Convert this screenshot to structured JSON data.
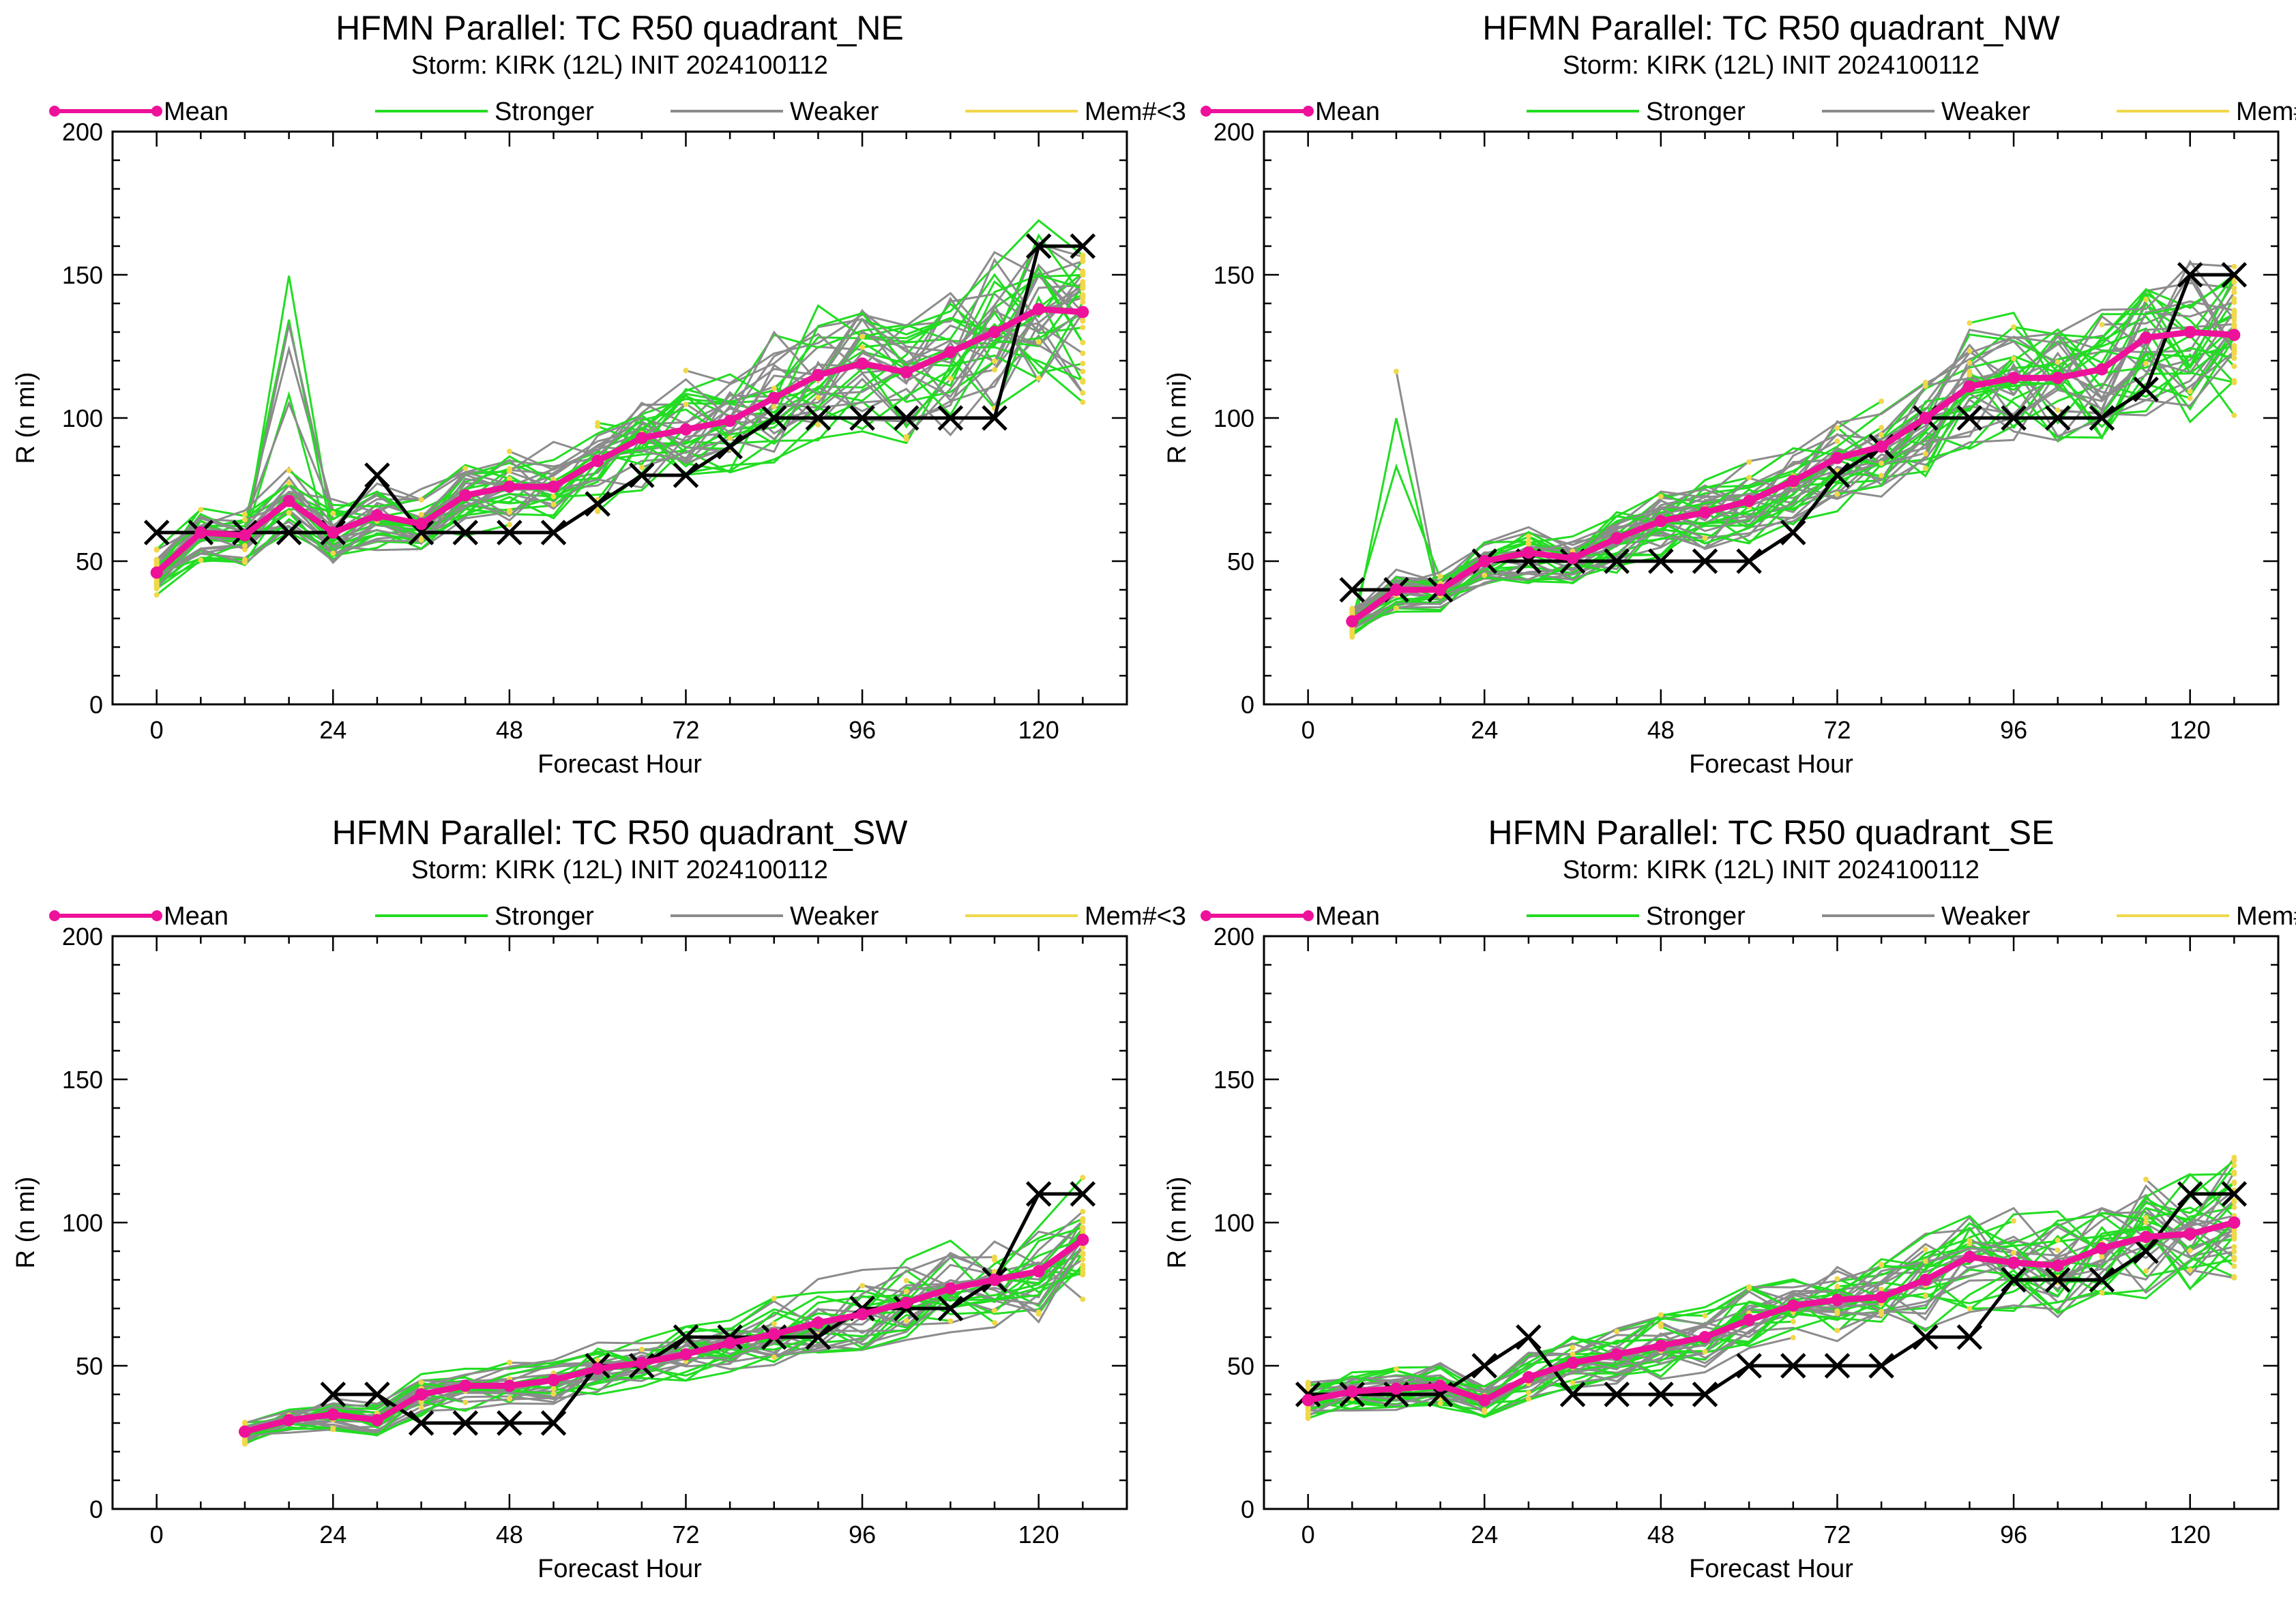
{
  "legend_labels": [
    "Mean",
    "Stronger",
    "Weaker",
    "Mem#<3"
  ],
  "colors": {
    "mean": "#ee1199",
    "stronger": "#22dd22",
    "weaker": "#8c8c8c",
    "few_members": "#f0d84a",
    "best_track": "#000000"
  },
  "chart_data": [
    {
      "type": "line",
      "title": "HFMN Parallel: TC  R50 quadrant_NE",
      "subtitle": "Storm: KIRK (12L) INIT 2024100112",
      "xlabel": "Forecast Hour",
      "ylabel": "R (n mi)",
      "xlim": [
        -6,
        132
      ],
      "ylim": [
        0,
        200
      ],
      "xticks": [
        0,
        24,
        48,
        72,
        96,
        120
      ],
      "yticks": [
        0,
        50,
        100,
        150,
        200
      ],
      "legend": "top",
      "series": [
        {
          "name": "Mean",
          "x": [
            0,
            6,
            12,
            18,
            24,
            30,
            36,
            42,
            48,
            54,
            60,
            66,
            72,
            78,
            84,
            90,
            96,
            102,
            108,
            114,
            120,
            126
          ],
          "values": [
            46,
            60,
            59,
            71,
            60,
            66,
            63,
            73,
            76,
            76,
            85,
            93,
            96,
            99,
            107,
            115,
            119,
            116,
            123,
            130,
            138,
            137
          ]
        },
        {
          "name": "",
          "x": [
            0,
            6,
            12,
            18,
            24,
            30,
            36,
            42,
            48,
            54,
            60,
            66,
            72,
            78,
            84,
            90,
            96,
            102,
            108,
            114,
            120,
            126
          ],
          "values": [
            60,
            60,
            60,
            60,
            60,
            80,
            60,
            60,
            60,
            60,
            70,
            80,
            80,
            90,
            100,
            100,
            100,
            100,
            100,
            100,
            160,
            160
          ]
        }
      ]
    },
    {
      "type": "line",
      "title": "HFMN Parallel: TC  R50 quadrant_NW",
      "subtitle": "Storm: KIRK (12L) INIT 2024100112",
      "xlabel": "Forecast Hour",
      "ylabel": "R (n mi)",
      "xlim": [
        -6,
        132
      ],
      "ylim": [
        0,
        200
      ],
      "xticks": [
        0,
        24,
        48,
        72,
        96,
        120
      ],
      "yticks": [
        0,
        50,
        100,
        150,
        200
      ],
      "legend": "top",
      "series": [
        {
          "name": "Mean",
          "x": [
            6,
            12,
            18,
            24,
            30,
            36,
            42,
            48,
            54,
            60,
            66,
            72,
            78,
            84,
            90,
            96,
            102,
            108,
            114,
            120,
            126
          ],
          "values": [
            29,
            40,
            40,
            50,
            53,
            51,
            58,
            64,
            67,
            71,
            78,
            86,
            90,
            100,
            111,
            114,
            114,
            117,
            128,
            130,
            129
          ]
        },
        {
          "name": "",
          "x": [
            6,
            12,
            18,
            24,
            30,
            36,
            42,
            48,
            54,
            60,
            66,
            72,
            78,
            84,
            90,
            96,
            102,
            108,
            114,
            120,
            126
          ],
          "values": [
            40,
            40,
            40,
            50,
            50,
            50,
            50,
            50,
            50,
            50,
            60,
            80,
            90,
            100,
            100,
            100,
            100,
            100,
            110,
            150,
            150
          ]
        }
      ]
    },
    {
      "type": "line",
      "title": "HFMN Parallel: TC  R50 quadrant_SW",
      "subtitle": "Storm: KIRK (12L) INIT 2024100112",
      "xlabel": "Forecast Hour",
      "ylabel": "R (n mi)",
      "xlim": [
        -6,
        132
      ],
      "ylim": [
        0,
        200
      ],
      "xticks": [
        0,
        24,
        48,
        72,
        96,
        120
      ],
      "yticks": [
        0,
        50,
        100,
        150,
        200
      ],
      "legend": "top",
      "series": [
        {
          "name": "Mean",
          "x": [
            12,
            18,
            24,
            30,
            36,
            42,
            48,
            54,
            60,
            66,
            72,
            78,
            84,
            90,
            96,
            102,
            108,
            114,
            120,
            126
          ],
          "values": [
            27,
            31,
            33,
            31,
            40,
            43,
            43,
            45,
            49,
            51,
            54,
            58,
            61,
            65,
            68,
            72,
            77,
            80,
            83,
            94
          ]
        },
        {
          "name": "",
          "x": [
            24,
            30,
            36,
            42,
            48,
            54,
            60,
            66,
            72,
            78,
            84,
            90,
            96,
            102,
            108,
            114,
            120,
            126
          ],
          "values": [
            40,
            40,
            30,
            30,
            30,
            30,
            50,
            50,
            60,
            60,
            60,
            60,
            70,
            70,
            70,
            80,
            110,
            110
          ]
        }
      ]
    },
    {
      "type": "line",
      "title": "HFMN Parallel: TC  R50 quadrant_SE",
      "subtitle": "Storm: KIRK (12L) INIT 2024100112",
      "xlabel": "Forecast Hour",
      "ylabel": "R (n mi)",
      "xlim": [
        -6,
        132
      ],
      "ylim": [
        0,
        200
      ],
      "xticks": [
        0,
        24,
        48,
        72,
        96,
        120
      ],
      "yticks": [
        0,
        50,
        100,
        150,
        200
      ],
      "legend": "top",
      "series": [
        {
          "name": "Mean",
          "x": [
            0,
            6,
            12,
            18,
            24,
            30,
            36,
            42,
            48,
            54,
            60,
            66,
            72,
            78,
            84,
            90,
            96,
            102,
            108,
            114,
            120,
            126
          ],
          "values": [
            38,
            41,
            42,
            43,
            38,
            46,
            51,
            54,
            57,
            60,
            66,
            71,
            73,
            74,
            80,
            88,
            86,
            85,
            91,
            95,
            96,
            100
          ]
        },
        {
          "name": "",
          "x": [
            0,
            6,
            12,
            18,
            24,
            30,
            36,
            42,
            48,
            54,
            60,
            66,
            72,
            78,
            84,
            90,
            96,
            102,
            108,
            114,
            120,
            126
          ],
          "values": [
            40,
            40,
            40,
            40,
            50,
            60,
            40,
            40,
            40,
            40,
            50,
            50,
            50,
            50,
            60,
            60,
            80,
            80,
            80,
            90,
            110,
            110
          ]
        }
      ]
    }
  ]
}
